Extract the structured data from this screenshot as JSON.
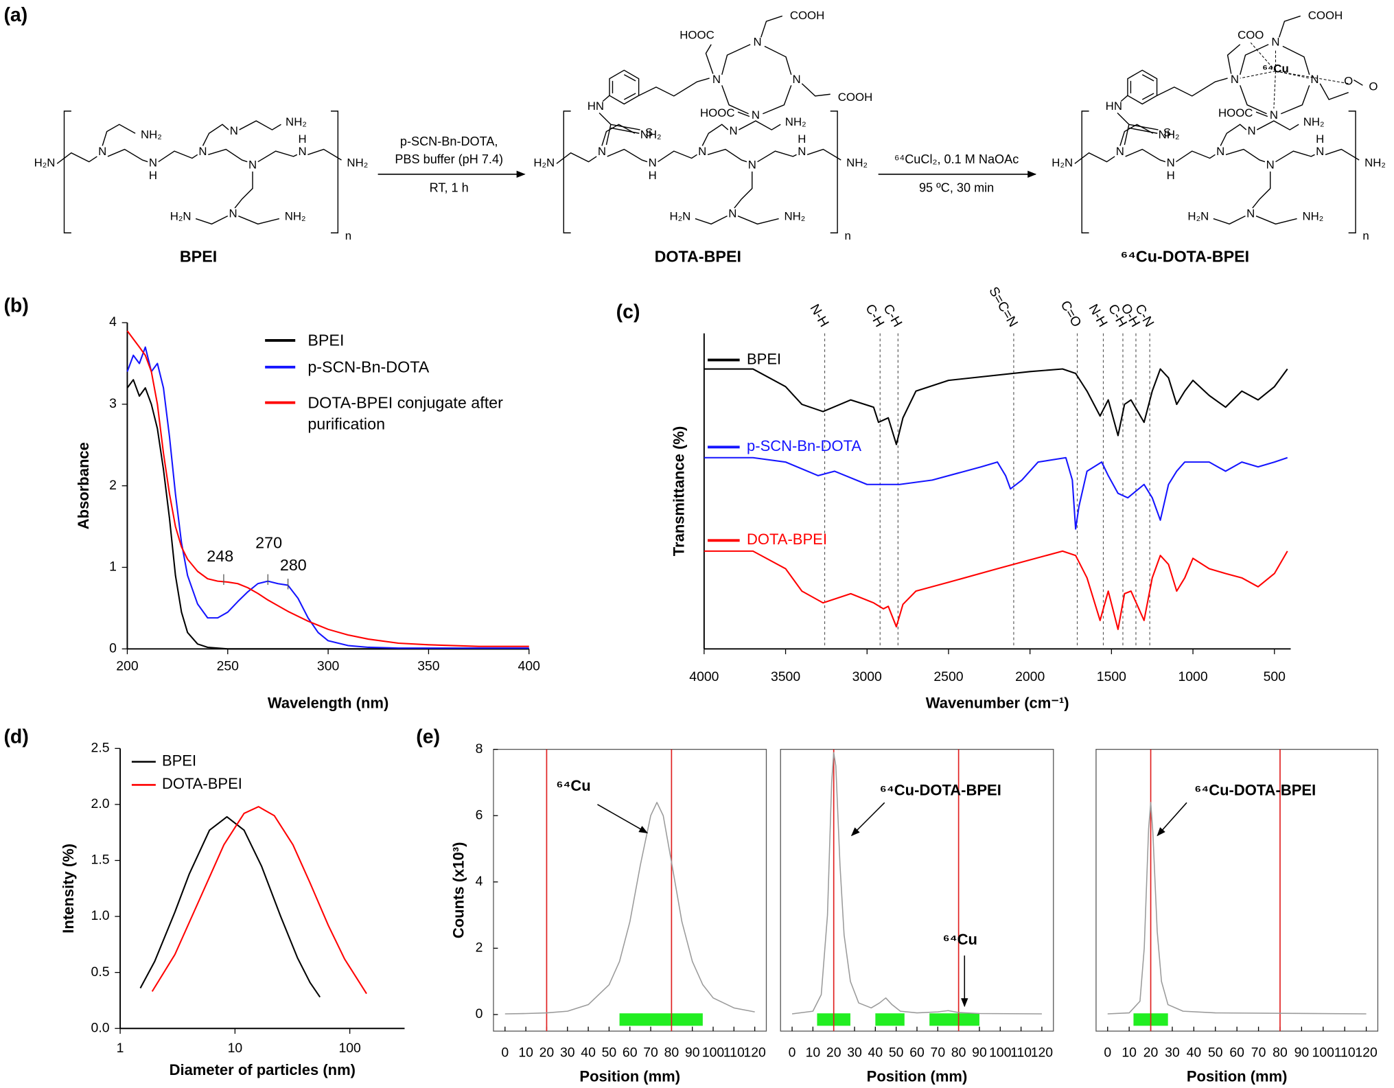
{
  "panel_labels": [
    "(a)",
    "(b)",
    "(c)",
    "(d)",
    "(e)"
  ],
  "scheme": {
    "compounds": [
      "BPEI",
      "DOTA-BPEI",
      "⁶⁴Cu-DOTA-BPEI"
    ],
    "step1": [
      "p-SCN-Bn-DOTA,",
      "PBS buffer (pH 7.4)",
      "RT, 1 h"
    ],
    "step2": [
      "⁶⁴CuCl₂, 0.1 M NaOAc",
      "95 ºC, 30 min"
    ],
    "atoms": [
      "H₂N",
      "NH₂",
      "N",
      "H",
      "n",
      "HN",
      "S",
      "HOOC",
      "COOH",
      "COO",
      "O",
      "⁶⁴Cu"
    ]
  },
  "chart_data": [
    {
      "type": "line",
      "y_label": "Absorbance",
      "x_label": "Wavelength (nm)",
      "xlim": [
        200,
        400
      ],
      "ylim": [
        0,
        4
      ],
      "xticks": [
        200,
        250,
        300,
        350,
        400
      ],
      "yticks": [
        0,
        1,
        2,
        3,
        4
      ],
      "x": [
        200,
        203,
        206,
        209,
        212,
        215,
        218,
        221,
        224,
        227,
        230,
        235,
        240,
        245,
        250,
        255,
        260,
        265,
        270,
        275,
        280,
        285,
        290,
        295,
        300,
        310,
        320,
        335,
        350,
        375,
        400
      ],
      "series": [
        {
          "name": "BPEI",
          "color": "#000000",
          "values": [
            3.2,
            3.3,
            3.1,
            3.2,
            3.0,
            2.7,
            2.2,
            1.6,
            0.9,
            0.45,
            0.2,
            0.06,
            0.02,
            0.01,
            0,
            0,
            0,
            0,
            0,
            0,
            0,
            0,
            0,
            0,
            0,
            0,
            0,
            0,
            0,
            0,
            0
          ]
        },
        {
          "name": "p-SCN-Bn-DOTA",
          "color": "#1414ff",
          "values": [
            3.4,
            3.6,
            3.5,
            3.7,
            3.4,
            3.5,
            3.2,
            2.6,
            1.9,
            1.3,
            0.9,
            0.55,
            0.38,
            0.38,
            0.45,
            0.58,
            0.7,
            0.8,
            0.83,
            0.8,
            0.78,
            0.62,
            0.38,
            0.2,
            0.1,
            0.04,
            0.02,
            0.01,
            0.01,
            0.01,
            0.01
          ]
        },
        {
          "name": "DOTA-BPEI conjugate after purification",
          "color": "#ff0000",
          "values": [
            3.9,
            3.8,
            3.7,
            3.6,
            3.4,
            3.0,
            2.4,
            1.9,
            1.5,
            1.25,
            1.1,
            0.95,
            0.86,
            0.83,
            0.82,
            0.8,
            0.75,
            0.68,
            0.6,
            0.53,
            0.46,
            0.4,
            0.34,
            0.29,
            0.24,
            0.17,
            0.12,
            0.07,
            0.05,
            0.03,
            0.03
          ]
        }
      ],
      "peak_labels": [
        248,
        270,
        280
      ]
    },
    {
      "type": "line",
      "y_label": "Transmittance (%)",
      "x_label": "Wavenumber (cm⁻¹)",
      "xlim": [
        4000,
        400
      ],
      "ylim": [
        0,
        100
      ],
      "xticks": [
        4000,
        3500,
        3000,
        2500,
        2000,
        1500,
        1000,
        500
      ],
      "series": [
        {
          "name": "BPEI",
          "color": "#000000",
          "x": [
            4000,
            3700,
            3500,
            3400,
            3270,
            3100,
            2960,
            2930,
            2870,
            2820,
            2780,
            2700,
            2500,
            2000,
            1800,
            1720,
            1650,
            1570,
            1520,
            1460,
            1420,
            1380,
            1300,
            1250,
            1200,
            1150,
            1100,
            1050,
            1000,
            900,
            800,
            700,
            600,
            500,
            420
          ],
          "values": [
            88.7,
            88.7,
            83.1,
            77.5,
            75.2,
            78.9,
            76.6,
            71.8,
            73.2,
            64.8,
            73.2,
            81.7,
            85.1,
            87.9,
            88.7,
            87.3,
            81.7,
            73.8,
            78.9,
            67.6,
            77.5,
            78.9,
            71.8,
            81.7,
            88.7,
            85.9,
            77.5,
            81.7,
            85.1,
            80.3,
            76.6,
            81.7,
            78.9,
            83.1,
            88.7
          ]
        },
        {
          "name": "p-SCN-Bn-DOTA",
          "color": "#1414ff",
          "x": [
            4000,
            3700,
            3500,
            3300,
            3200,
            3000,
            2800,
            2600,
            2300,
            2200,
            2150,
            2120,
            2050,
            1950,
            1780,
            1740,
            1720,
            1700,
            1650,
            1560,
            1520,
            1460,
            1400,
            1300,
            1250,
            1200,
            1150,
            1100,
            1050,
            900,
            800,
            700,
            600,
            500,
            420
          ],
          "values": [
            60.6,
            60.6,
            59.2,
            54.9,
            56.3,
            52.1,
            52.1,
            53.5,
            57.7,
            59.2,
            54.9,
            50.7,
            53.5,
            59.2,
            60.6,
            53.5,
            38.0,
            45.1,
            56.3,
            59.2,
            54.9,
            49.3,
            47.9,
            52.1,
            47.9,
            40.8,
            52.1,
            56.3,
            59.2,
            59.2,
            56.3,
            59.2,
            57.7,
            59.2,
            60.6
          ]
        },
        {
          "name": "DOTA-BPEI",
          "color": "#ff0000",
          "x": [
            4000,
            3700,
            3500,
            3400,
            3270,
            3100,
            2960,
            2900,
            2870,
            2820,
            2780,
            2700,
            2500,
            2200,
            2000,
            1800,
            1720,
            1650,
            1570,
            1520,
            1460,
            1420,
            1380,
            1300,
            1250,
            1200,
            1150,
            1100,
            1050,
            1000,
            900,
            800,
            700,
            600,
            500,
            420
          ],
          "values": [
            31.0,
            31.0,
            25.4,
            18.3,
            14.6,
            17.5,
            14.6,
            12.7,
            13.5,
            7.0,
            14.1,
            18.3,
            21.1,
            25.4,
            28.2,
            31.0,
            29.6,
            22.5,
            9.0,
            18.3,
            6.2,
            17.5,
            18.3,
            9.0,
            22.5,
            29.6,
            26.8,
            18.3,
            22.5,
            28.7,
            25.4,
            23.9,
            22.5,
            19.7,
            23.9,
            31.0
          ]
        }
      ],
      "bands": [
        {
          "label": "N-H",
          "x": 3260
        },
        {
          "label": "C-H",
          "x": 2920
        },
        {
          "label": "C-H",
          "x": 2810
        },
        {
          "label": "S=C=N",
          "x": 2100
        },
        {
          "label": "C=O",
          "x": 1710
        },
        {
          "label": "N-H",
          "x": 1550
        },
        {
          "label": "C-H",
          "x": 1430
        },
        {
          "label": "O-H",
          "x": 1350
        },
        {
          "label": "C-N",
          "x": 1265
        }
      ]
    },
    {
      "type": "line",
      "y_label": "Intensity (%)",
      "x_label": "Diameter of particles (nm)",
      "x_scale": "log",
      "legend": "upper left",
      "xlim": [
        1,
        300
      ],
      "ylim": [
        0,
        2.5
      ],
      "xticks": [
        1,
        10,
        100
      ],
      "yticks": [
        {
          "value": 0,
          "label": "0.0"
        },
        {
          "value": 0.5,
          "label": "0.5"
        },
        {
          "value": 1,
          "label": "1.0"
        },
        {
          "value": 1.5,
          "label": "1.5"
        },
        {
          "value": 2,
          "label": "2.0"
        },
        {
          "value": 2.5,
          "label": "2.5"
        }
      ],
      "series": [
        {
          "name": "BPEI",
          "color": "#000000",
          "x": [
            1.5,
            2,
            3,
            4,
            6,
            8.5,
            12,
            17,
            25,
            35,
            45,
            55
          ],
          "values": [
            0.36,
            0.6,
            1.04,
            1.38,
            1.77,
            1.89,
            1.77,
            1.45,
            1.0,
            0.63,
            0.41,
            0.28
          ]
        },
        {
          "name": "DOTA-BPEI",
          "color": "#ff0000",
          "x": [
            1.9,
            3,
            5,
            8,
            12,
            16,
            22,
            32,
            45,
            65,
            90,
            140
          ],
          "values": [
            0.33,
            0.66,
            1.17,
            1.64,
            1.92,
            1.98,
            1.9,
            1.64,
            1.3,
            0.92,
            0.62,
            0.31
          ]
        }
      ]
    },
    {
      "type": "line",
      "y_label": "Counts (x10³)",
      "x_label": "Position (mm)",
      "xlim": [
        0,
        120
      ],
      "ylim": [
        -0.5,
        8
      ],
      "xticks": [
        0,
        10,
        20,
        30,
        40,
        50,
        60,
        70,
        80,
        90,
        100,
        110,
        120
      ],
      "yticks": [
        0,
        2,
        4,
        6,
        8
      ],
      "series": [
        {
          "color": "#9a9a9a",
          "x": [
            0,
            10,
            20,
            30,
            40,
            50,
            55,
            60,
            65,
            70,
            73,
            76,
            80,
            85,
            90,
            95,
            100,
            110,
            120
          ],
          "values": [
            0.02,
            0.03,
            0.05,
            0.1,
            0.3,
            0.9,
            1.6,
            2.8,
            4.5,
            6.0,
            6.4,
            6.0,
            4.6,
            2.8,
            1.6,
            0.9,
            0.5,
            0.2,
            0.08
          ]
        }
      ],
      "markers": [
        20,
        80
      ],
      "regions": [
        [
          55,
          95
        ]
      ],
      "annotations": [
        "⁶⁴Cu"
      ]
    },
    {
      "type": "line",
      "x_label": "Position (mm)",
      "xlim": [
        0,
        120
      ],
      "ylim": [
        -0.5,
        8
      ],
      "xticks": [
        0,
        10,
        20,
        30,
        40,
        50,
        60,
        70,
        80,
        90,
        100,
        110,
        120
      ],
      "series": [
        {
          "color": "#9a9a9a",
          "x": [
            0,
            10,
            14,
            17,
            19,
            20,
            21,
            23,
            25,
            28,
            32,
            38,
            42,
            45,
            48,
            52,
            60,
            70,
            75,
            80,
            90,
            120
          ],
          "values": [
            0.02,
            0.1,
            0.6,
            3,
            7,
            7.9,
            7.5,
            4.5,
            2.4,
            1,
            0.35,
            0.2,
            0.35,
            0.5,
            0.3,
            0.1,
            0.05,
            0.08,
            0.12,
            0.06,
            0.03,
            0.02
          ]
        }
      ],
      "markers": [
        20,
        80
      ],
      "regions": [
        [
          12,
          28
        ],
        [
          40,
          54
        ],
        [
          66,
          90
        ]
      ],
      "annotations": [
        "⁶⁴Cu-DOTA-BPEI",
        "⁶⁴Cu"
      ]
    },
    {
      "type": "line",
      "x_label": "Position (mm)",
      "xlim": [
        0,
        120
      ],
      "ylim": [
        -0.5,
        8
      ],
      "xticks": [
        0,
        10,
        20,
        30,
        40,
        50,
        60,
        70,
        80,
        90,
        100,
        110,
        120
      ],
      "series": [
        {
          "color": "#9a9a9a",
          "x": [
            0,
            10,
            15,
            17,
            19,
            20,
            21,
            23,
            25,
            28,
            35,
            50,
            120
          ],
          "values": [
            0.02,
            0.05,
            0.4,
            2,
            5.6,
            6.4,
            5.5,
            2.5,
            1,
            0.3,
            0.1,
            0.05,
            0.02
          ]
        }
      ],
      "markers": [
        20,
        80
      ],
      "regions": [
        [
          12,
          28
        ]
      ],
      "annotations": [
        "⁶⁴Cu-DOTA-BPEI"
      ]
    }
  ]
}
